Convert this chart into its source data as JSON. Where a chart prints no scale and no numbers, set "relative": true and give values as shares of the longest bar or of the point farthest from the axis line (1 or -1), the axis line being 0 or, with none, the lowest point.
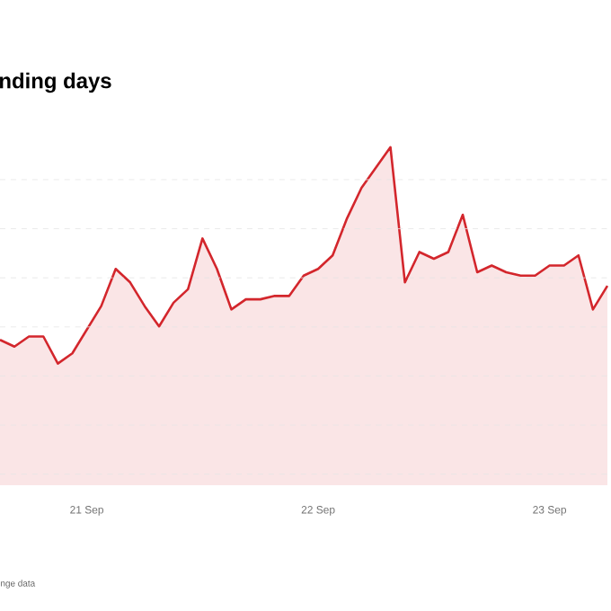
{
  "chart_data": {
    "type": "area",
    "title": "nding days",
    "annotations": [
      "nge data"
    ],
    "relative": true,
    "grid": "y",
    "color": "#d3262c",
    "categories": [
      null,
      null,
      null,
      null,
      null,
      null,
      "21 Sep",
      null,
      null,
      null,
      null,
      null,
      null,
      null,
      null,
      null,
      null,
      null,
      null,
      null,
      null,
      null,
      "22 Sep",
      null,
      null,
      null,
      null,
      null,
      null,
      null,
      null,
      null,
      null,
      null,
      null,
      null,
      null,
      null,
      "23 Sep",
      null,
      null,
      null,
      null
    ],
    "values": [
      0.43,
      0.41,
      0.44,
      0.44,
      0.36,
      0.39,
      0.46,
      0.53,
      0.64,
      0.6,
      0.53,
      0.47,
      0.54,
      0.58,
      0.73,
      0.64,
      0.52,
      0.55,
      0.55,
      0.56,
      0.56,
      0.62,
      0.64,
      0.68,
      0.79,
      0.88,
      0.94,
      1,
      0.6,
      0.69,
      0.67,
      0.69,
      0.8,
      0.63,
      0.65,
      0.63,
      0.62,
      0.62,
      0.65,
      0.65,
      0.68,
      0.52,
      0.59
    ]
  }
}
